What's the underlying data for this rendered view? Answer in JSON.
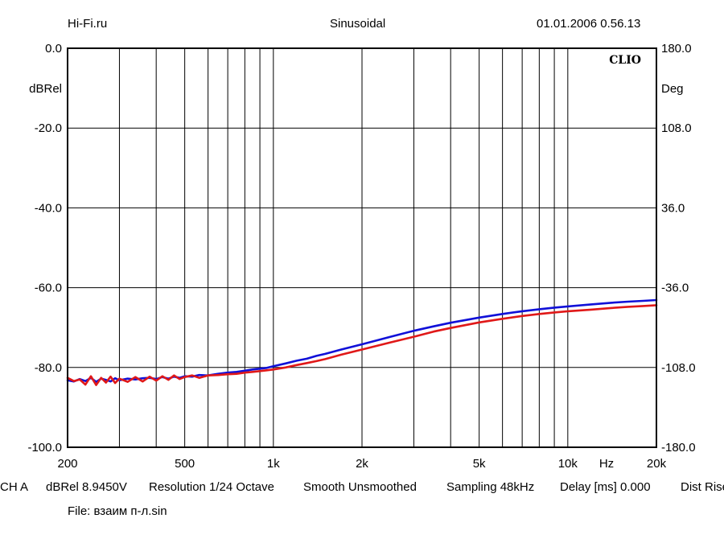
{
  "header": {
    "left": "Hi-Fi.ru",
    "center": "Sinusoidal",
    "right": "01.01.2006 0.56.13"
  },
  "chart_data": {
    "type": "line",
    "brand_label": "CLIO",
    "x_scale": "log",
    "xlim": [
      200,
      20000
    ],
    "x_ticks": [
      200,
      500,
      1000,
      2000,
      5000,
      10000,
      20000
    ],
    "x_tick_labels": [
      "200",
      "500",
      "1k",
      "2k",
      "5k",
      "10k",
      "20k"
    ],
    "x_unit": "Hz",
    "x_minor_grid": [
      300,
      400,
      600,
      700,
      800,
      900,
      3000,
      4000,
      6000,
      7000,
      8000,
      9000
    ],
    "ylim": [
      -100,
      0
    ],
    "y_ticks": [
      0,
      -20,
      -40,
      -60,
      -80,
      -100
    ],
    "y_tick_labels": [
      "0.0",
      "-20.0",
      "-40.0",
      "-60.0",
      "-80.0",
      "-100.0"
    ],
    "ylabel": "dBRel",
    "y2lim": [
      -180,
      180
    ],
    "y2_ticks": [
      180,
      108,
      36,
      -36,
      -108,
      -180
    ],
    "y2_tick_labels": [
      "180.0",
      "108.0",
      "36.0",
      "-36.0",
      "-108.0",
      "-180.0"
    ],
    "y2label": "Deg",
    "series": [
      {
        "name": "blue",
        "color": "#1010d8",
        "x": [
          200,
          210,
          220,
          230,
          240,
          250,
          260,
          270,
          280,
          290,
          300,
          320,
          340,
          360,
          380,
          400,
          420,
          440,
          460,
          480,
          500,
          530,
          560,
          600,
          650,
          700,
          750,
          800,
          850,
          900,
          950,
          1000,
          1100,
          1200,
          1300,
          1400,
          1500,
          1700,
          2000,
          2500,
          3000,
          3500,
          4000,
          5000,
          6000,
          7000,
          8000,
          9000,
          10000,
          12000,
          14000,
          16000,
          18000,
          20000
        ],
        "values": [
          -83.2,
          -83.5,
          -82.9,
          -83.4,
          -82.6,
          -83.6,
          -82.8,
          -83.1,
          -83.5,
          -82.7,
          -83.2,
          -82.8,
          -83.0,
          -82.7,
          -82.6,
          -82.9,
          -82.4,
          -82.8,
          -82.3,
          -82.6,
          -82.2,
          -82.3,
          -81.9,
          -82.0,
          -81.6,
          -81.3,
          -81.1,
          -80.8,
          -80.5,
          -80.3,
          -80.1,
          -79.7,
          -79.0,
          -78.3,
          -77.8,
          -77.1,
          -76.6,
          -75.5,
          -74.2,
          -72.3,
          -70.8,
          -69.7,
          -68.8,
          -67.5,
          -66.6,
          -65.9,
          -65.4,
          -65.0,
          -64.7,
          -64.2,
          -63.8,
          -63.5,
          -63.3,
          -63.1
        ]
      },
      {
        "name": "red",
        "color": "#e01818",
        "x": [
          200,
          210,
          220,
          230,
          240,
          250,
          260,
          270,
          280,
          290,
          300,
          320,
          340,
          360,
          380,
          400,
          420,
          440,
          460,
          480,
          500,
          530,
          560,
          600,
          650,
          700,
          750,
          800,
          850,
          900,
          950,
          1000,
          1100,
          1200,
          1300,
          1400,
          1500,
          1700,
          2000,
          2500,
          3000,
          3500,
          4000,
          5000,
          6000,
          7000,
          8000,
          9000,
          10000,
          12000,
          14000,
          16000,
          18000,
          20000
        ],
        "values": [
          -82.6,
          -83.4,
          -83.0,
          -84.3,
          -82.2,
          -84.4,
          -82.6,
          -83.8,
          -82.3,
          -83.9,
          -82.8,
          -83.6,
          -82.4,
          -83.5,
          -82.3,
          -83.3,
          -82.2,
          -83.1,
          -82.0,
          -82.9,
          -82.4,
          -82.0,
          -82.6,
          -82.0,
          -81.9,
          -81.7,
          -81.6,
          -81.3,
          -81.1,
          -80.9,
          -80.7,
          -80.5,
          -80.0,
          -79.4,
          -78.9,
          -78.4,
          -77.9,
          -76.8,
          -75.5,
          -73.7,
          -72.3,
          -71.0,
          -70.1,
          -68.7,
          -67.8,
          -67.1,
          -66.6,
          -66.2,
          -65.9,
          -65.5,
          -65.1,
          -64.8,
          -64.6,
          -64.4
        ]
      }
    ]
  },
  "footer": {
    "channel": "CH A",
    "unit_value": "dBRel 8.9450V",
    "resolution": "Resolution 1/24 Octave",
    "smoothing": "Smooth Unsmoothed",
    "sampling": "Sampling 48kHz",
    "delay": "Delay [ms] 0.000",
    "dist": "Dist Rise",
    "file": "File: взаим п-л.sin"
  }
}
